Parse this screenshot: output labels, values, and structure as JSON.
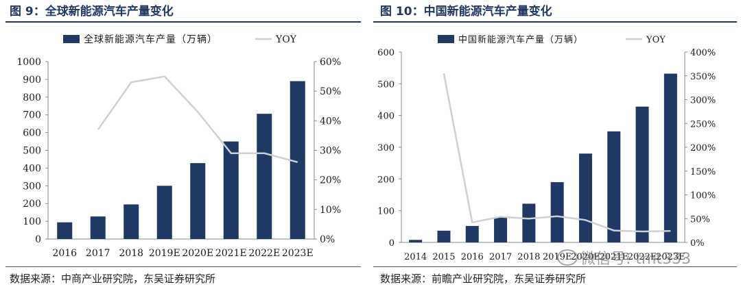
{
  "charts": {
    "left": {
      "figure_title": "图 9：全球新能源汽车产量变化",
      "source": "数据来源：中商产业研究院，东吴证券研究所"
    },
    "right": {
      "figure_title": "图 10：中国新能源汽车产量变化",
      "source": "数据来源：前瞻产业研究院，东吴证券研究所"
    }
  },
  "watermark": "微信号: tmt333",
  "colors": {
    "bar": "#1f3864",
    "line": "#d0d0d0",
    "title": "#1f3864"
  },
  "chart_data": [
    {
      "id": "left",
      "type": "bar",
      "title": "全球新能源汽车产量变化",
      "categories": [
        "2016",
        "2017",
        "2018",
        "2019E",
        "2020E",
        "2021E",
        "2022E",
        "2023E"
      ],
      "series": [
        {
          "name": "全球新能源汽车产量（万辆）",
          "kind": "bar",
          "axis": "left",
          "values": [
            94,
            127,
            195,
            300,
            428,
            550,
            706,
            890
          ]
        },
        {
          "name": "YOY",
          "kind": "line",
          "axis": "right",
          "values": [
            null,
            0.37,
            0.53,
            0.55,
            0.43,
            0.29,
            0.29,
            0.26
          ]
        }
      ],
      "left_axis": {
        "min": 0,
        "max": 1000,
        "step": 100,
        "ticks": [
          "0",
          "100",
          "200",
          "300",
          "400",
          "500",
          "600",
          "700",
          "800",
          "900",
          "1000"
        ]
      },
      "right_axis": {
        "min": 0,
        "max": 0.6,
        "step": 0.1,
        "ticks": [
          "0%",
          "10%",
          "20%",
          "30%",
          "40%",
          "50%",
          "60%"
        ]
      },
      "legend": "top"
    },
    {
      "id": "right",
      "type": "bar",
      "title": "中国新能源汽车产量变化",
      "categories": [
        "2014",
        "2015",
        "2016",
        "2017",
        "2018",
        "2019E",
        "2020E",
        "2021E",
        "2022E",
        "2023E"
      ],
      "series": [
        {
          "name": "中国新能源汽车产量（万辆）",
          "kind": "bar",
          "axis": "left",
          "values": [
            8,
            37,
            52,
            80,
            122,
            190,
            280,
            350,
            428,
            532
          ]
        },
        {
          "name": "YOY",
          "kind": "line",
          "axis": "right",
          "values": [
            null,
            3.55,
            0.42,
            0.54,
            0.5,
            0.55,
            0.47,
            0.25,
            0.23,
            0.24
          ]
        }
      ],
      "left_axis": {
        "min": 0,
        "max": 600,
        "step": 100,
        "ticks": [
          "0",
          "100",
          "200",
          "300",
          "400",
          "500",
          "600"
        ]
      },
      "right_axis": {
        "min": 0,
        "max": 4.0,
        "step": 0.5,
        "ticks": [
          "0%",
          "50%",
          "100%",
          "150%",
          "200%",
          "250%",
          "300%",
          "350%",
          "400%"
        ]
      },
      "legend": "top"
    }
  ]
}
